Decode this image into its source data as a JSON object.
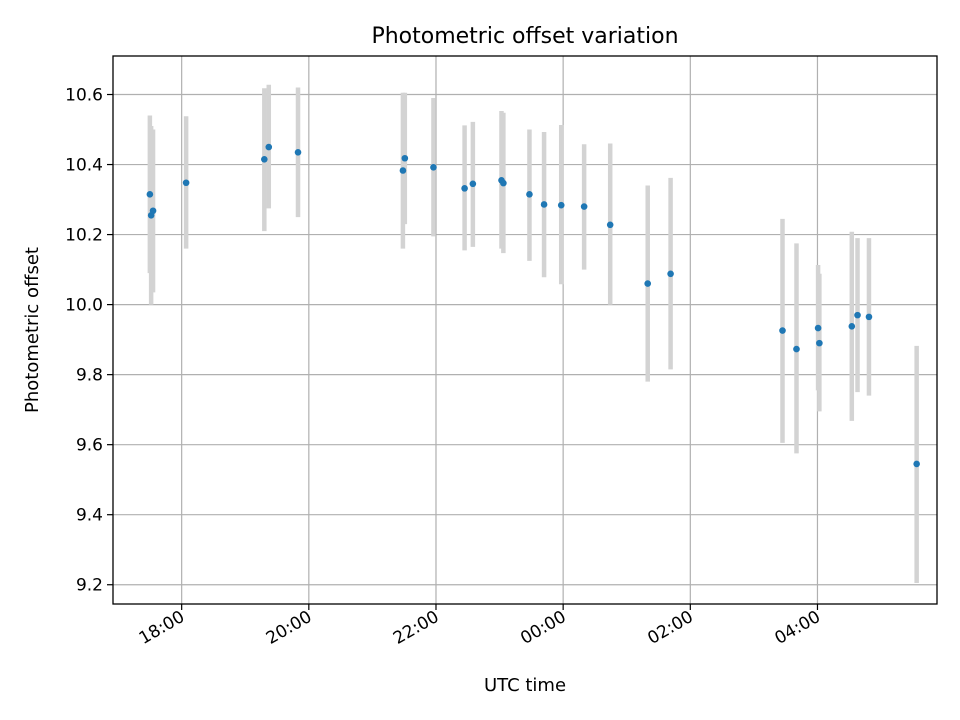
{
  "chart_data": {
    "type": "scatter",
    "title": "Photometric offset variation",
    "xlabel": "UTC time",
    "ylabel": "Photometric offset",
    "x_axis_unit": "hours after 18:00 UTC",
    "xlim": [
      -1.08,
      11.88
    ],
    "ylim": [
      9.145,
      10.71
    ],
    "xticks": [
      {
        "value": 0,
        "label": "18:00"
      },
      {
        "value": 2,
        "label": "20:00"
      },
      {
        "value": 4,
        "label": "22:00"
      },
      {
        "value": 6,
        "label": "00:00"
      },
      {
        "value": 8,
        "label": "02:00"
      },
      {
        "value": 10,
        "label": "04:00"
      }
    ],
    "yticks": [
      {
        "value": 9.2,
        "label": "9.2"
      },
      {
        "value": 9.4,
        "label": "9.4"
      },
      {
        "value": 9.6,
        "label": "9.6"
      },
      {
        "value": 9.8,
        "label": "9.8"
      },
      {
        "value": 10.0,
        "label": "10.0"
      },
      {
        "value": 10.2,
        "label": "10.2"
      },
      {
        "value": 10.4,
        "label": "10.4"
      },
      {
        "value": 10.6,
        "label": "10.6"
      }
    ],
    "grid": true,
    "marker_color": "#1f77b4",
    "errorbar_color": "#d3d3d3",
    "points": [
      {
        "x": -0.5,
        "y": 10.315,
        "ylo": 10.09,
        "yhi": 10.54
      },
      {
        "x": -0.48,
        "y": 10.255,
        "ylo": 10.0,
        "yhi": 10.51
      },
      {
        "x": -0.45,
        "y": 10.268,
        "ylo": 10.035,
        "yhi": 10.5
      },
      {
        "x": 0.07,
        "y": 10.348,
        "ylo": 10.16,
        "yhi": 10.538
      },
      {
        "x": 1.3,
        "y": 10.415,
        "ylo": 10.21,
        "yhi": 10.618
      },
      {
        "x": 1.37,
        "y": 10.45,
        "ylo": 10.275,
        "yhi": 10.628
      },
      {
        "x": 1.83,
        "y": 10.435,
        "ylo": 10.25,
        "yhi": 10.62
      },
      {
        "x": 3.48,
        "y": 10.383,
        "ylo": 10.16,
        "yhi": 10.605
      },
      {
        "x": 3.51,
        "y": 10.418,
        "ylo": 10.23,
        "yhi": 10.605
      },
      {
        "x": 3.96,
        "y": 10.392,
        "ylo": 10.195,
        "yhi": 10.59
      },
      {
        "x": 4.45,
        "y": 10.332,
        "ylo": 10.155,
        "yhi": 10.512
      },
      {
        "x": 4.58,
        "y": 10.345,
        "ylo": 10.165,
        "yhi": 10.522
      },
      {
        "x": 5.03,
        "y": 10.355,
        "ylo": 10.16,
        "yhi": 10.553
      },
      {
        "x": 5.06,
        "y": 10.347,
        "ylo": 10.147,
        "yhi": 10.548
      },
      {
        "x": 5.47,
        "y": 10.315,
        "ylo": 10.125,
        "yhi": 10.5
      },
      {
        "x": 5.7,
        "y": 10.286,
        "ylo": 10.078,
        "yhi": 10.493
      },
      {
        "x": 5.97,
        "y": 10.284,
        "ylo": 10.058,
        "yhi": 10.513
      },
      {
        "x": 6.33,
        "y": 10.28,
        "ylo": 10.1,
        "yhi": 10.458
      },
      {
        "x": 6.74,
        "y": 10.228,
        "ylo": 10.0,
        "yhi": 10.46
      },
      {
        "x": 7.33,
        "y": 10.06,
        "ylo": 9.78,
        "yhi": 10.34
      },
      {
        "x": 7.69,
        "y": 10.088,
        "ylo": 9.815,
        "yhi": 10.362
      },
      {
        "x": 9.45,
        "y": 9.926,
        "ylo": 9.605,
        "yhi": 10.245
      },
      {
        "x": 9.67,
        "y": 9.873,
        "ylo": 9.575,
        "yhi": 10.175
      },
      {
        "x": 10.01,
        "y": 9.933,
        "ylo": 9.755,
        "yhi": 10.113
      },
      {
        "x": 10.03,
        "y": 9.89,
        "ylo": 9.695,
        "yhi": 10.088
      },
      {
        "x": 10.54,
        "y": 9.938,
        "ylo": 9.668,
        "yhi": 10.208
      },
      {
        "x": 10.63,
        "y": 9.97,
        "ylo": 9.75,
        "yhi": 10.19
      },
      {
        "x": 10.81,
        "y": 9.965,
        "ylo": 9.74,
        "yhi": 10.19
      },
      {
        "x": 11.56,
        "y": 9.545,
        "ylo": 9.205,
        "yhi": 9.882
      }
    ]
  }
}
